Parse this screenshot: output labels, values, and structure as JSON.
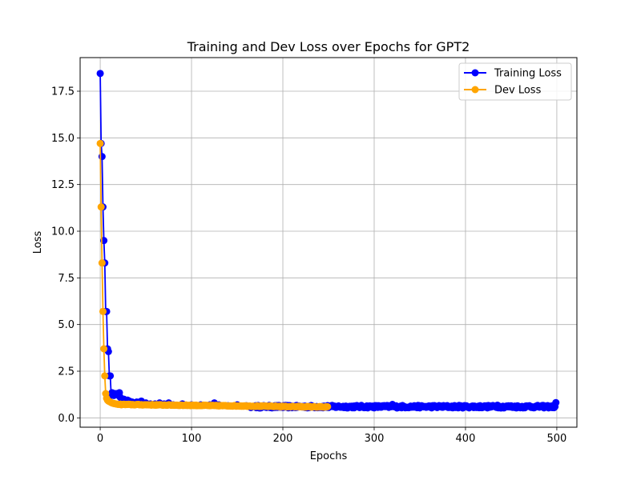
{
  "chart_data": {
    "type": "line",
    "title": "Training and Dev Loss over Epochs for GPT2",
    "xlabel": "Epochs",
    "ylabel": "Loss",
    "xlim": [
      -22,
      522
    ],
    "ylim": [
      -0.5,
      19.3
    ],
    "xticks": [
      0,
      100,
      200,
      300,
      400,
      500
    ],
    "xtick_labels": [
      "0",
      "100",
      "200",
      "300",
      "400",
      "500"
    ],
    "yticks": [
      0.0,
      2.5,
      5.0,
      7.5,
      10.0,
      12.5,
      15.0,
      17.5
    ],
    "ytick_labels": [
      "0.0",
      "2.5",
      "5.0",
      "7.5",
      "10.0",
      "12.5",
      "15.0",
      "17.5"
    ],
    "grid": true,
    "legend_position": "top-right",
    "series": [
      {
        "name": "Training Loss",
        "color": "#0000ff",
        "head": [
          [
            0,
            18.45
          ],
          [
            1,
            14.7
          ],
          [
            2,
            14.0
          ],
          [
            3,
            11.3
          ],
          [
            4,
            9.5
          ],
          [
            5,
            8.3
          ],
          [
            6,
            5.7
          ],
          [
            7,
            5.7
          ],
          [
            8,
            3.7
          ],
          [
            9,
            3.55
          ],
          [
            10,
            2.25
          ],
          [
            11,
            2.25
          ],
          [
            12,
            1.2
          ],
          [
            13,
            1.35
          ],
          [
            14,
            1.3
          ],
          [
            15,
            1.2
          ],
          [
            16,
            1.3
          ],
          [
            17,
            1.25
          ],
          [
            18,
            1.3
          ],
          [
            19,
            1.25
          ],
          [
            20,
            1.2
          ],
          [
            21,
            1.35
          ],
          [
            22,
            1.1
          ],
          [
            24,
            0.95
          ],
          [
            26,
            1.0
          ],
          [
            28,
            0.9
          ],
          [
            30,
            0.95
          ],
          [
            32,
            0.9
          ],
          [
            35,
            0.85
          ],
          [
            40,
            0.85
          ],
          [
            45,
            0.9
          ],
          [
            50,
            0.8
          ],
          [
            55,
            0.75
          ],
          [
            60,
            0.75
          ],
          [
            65,
            0.8
          ],
          [
            70,
            0.75
          ],
          [
            75,
            0.8
          ],
          [
            80,
            0.7
          ],
          [
            90,
            0.75
          ],
          [
            100,
            0.7
          ],
          [
            110,
            0.7
          ],
          [
            120,
            0.7
          ],
          [
            125,
            0.8
          ],
          [
            130,
            0.7
          ],
          [
            140,
            0.65
          ],
          [
            150,
            0.7
          ],
          [
            160,
            0.65
          ],
          [
            165,
            0.55
          ],
          [
            170,
            0.65
          ]
        ],
        "tail": {
          "from": 171,
          "to": 497,
          "base": 0.6,
          "amplitude": 0.07,
          "spikes": [
            [
              320,
              0.72
            ],
            [
              435,
              0.68
            ],
            [
              470,
              0.65
            ]
          ]
        },
        "end": [
          [
            498,
            0.6
          ],
          [
            499,
            0.82
          ]
        ]
      },
      {
        "name": "Dev Loss",
        "color": "#ffa500",
        "head": [
          [
            0,
            14.7
          ],
          [
            1,
            11.3
          ],
          [
            2,
            8.3
          ],
          [
            3,
            5.7
          ],
          [
            4,
            3.7
          ],
          [
            5,
            2.25
          ],
          [
            6,
            1.3
          ],
          [
            7,
            1.05
          ],
          [
            8,
            0.95
          ],
          [
            9,
            0.9
          ],
          [
            10,
            0.88
          ],
          [
            11,
            0.85
          ],
          [
            12,
            0.82
          ],
          [
            13,
            0.8
          ],
          [
            14,
            0.78
          ],
          [
            15,
            0.77
          ],
          [
            16,
            0.76
          ],
          [
            17,
            0.75
          ],
          [
            18,
            0.74
          ],
          [
            19,
            0.73
          ],
          [
            20,
            0.72
          ]
        ],
        "tail": {
          "from": 21,
          "to": 249,
          "start": 0.72,
          "end": 0.58,
          "amplitude": 0.02
        }
      }
    ]
  }
}
